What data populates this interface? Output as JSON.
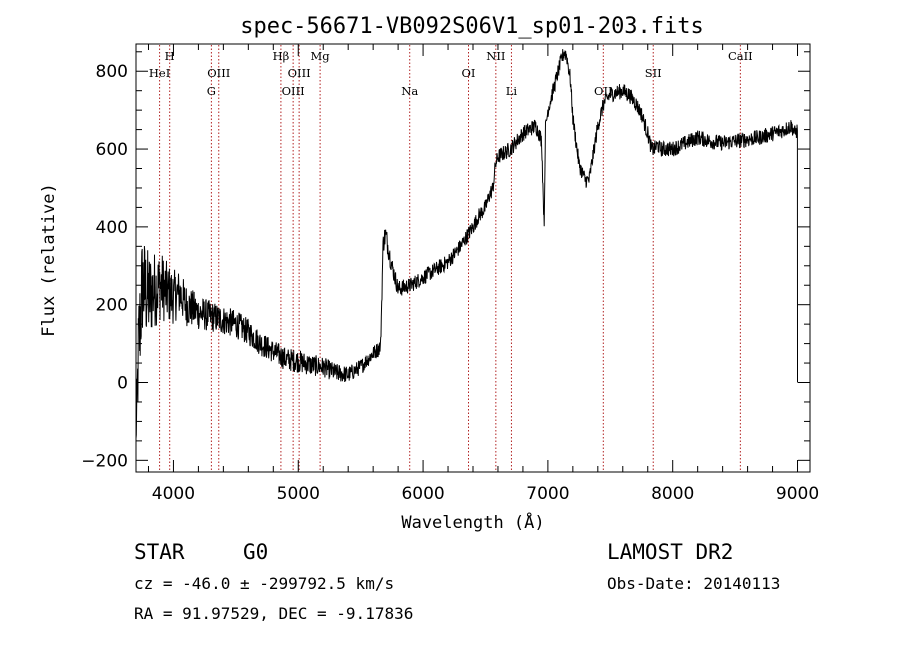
{
  "chart_data": {
    "type": "line",
    "title": "spec-56671-VB092S06V1_sp01-203.fits",
    "xlabel": "Wavelength (Å)",
    "ylabel": "Flux (relative)",
    "xlim": [
      3700,
      9100
    ],
    "ylim": [
      -230,
      870
    ],
    "xticks": [
      4000,
      5000,
      6000,
      7000,
      8000,
      9000
    ],
    "yticks": [
      -200,
      0,
      200,
      400,
      600,
      800
    ],
    "grid": false,
    "line_color": "#000000",
    "marker_color": "#b22222",
    "spectrum_anchor": {
      "x": [
        3700,
        3720,
        3750,
        3800,
        3850,
        3900,
        3950,
        4000,
        4050,
        4100,
        4150,
        4200,
        4300,
        4400,
        4500,
        4600,
        4700,
        4800,
        4900,
        5000,
        5100,
        5200,
        5300,
        5400,
        5500,
        5600,
        5640,
        5660,
        5680,
        5700,
        5750,
        5800,
        5900,
        6000,
        6100,
        6200,
        6300,
        6400,
        6450,
        6500,
        6530,
        6560,
        6580,
        6600,
        6650,
        6700,
        6750,
        6800,
        6850,
        6900,
        6930,
        6950,
        6970,
        6980,
        7000,
        7050,
        7100,
        7130,
        7150,
        7180,
        7200,
        7250,
        7300,
        7330,
        7350,
        7400,
        7450,
        7500,
        7550,
        7600,
        7650,
        7700,
        7750,
        7800,
        7830,
        7850,
        7880,
        7900,
        8000,
        8100,
        8200,
        8300,
        8400,
        8500,
        8600,
        8700,
        8800,
        8900,
        8950,
        8980,
        9000
      ],
      "y": [
        -150,
        80,
        250,
        220,
        240,
        250,
        230,
        220,
        230,
        200,
        190,
        180,
        170,
        160,
        150,
        130,
        100,
        80,
        60,
        55,
        45,
        40,
        25,
        20,
        40,
        75,
        85,
        95,
        360,
        380,
        300,
        240,
        250,
        270,
        290,
        310,
        350,
        400,
        430,
        450,
        480,
        500,
        560,
        580,
        590,
        600,
        620,
        640,
        650,
        660,
        640,
        620,
        400,
        650,
        700,
        760,
        820,
        850,
        840,
        780,
        680,
        560,
        520,
        520,
        560,
        660,
        720,
        740,
        745,
        750,
        740,
        720,
        690,
        640,
        600,
        600,
        610,
        600,
        600,
        615,
        630,
        620,
        615,
        620,
        625,
        630,
        640,
        650,
        660,
        640,
        650
      ],
      "noise": [
        20,
        150,
        140,
        120,
        100,
        90,
        80,
        70,
        60,
        55,
        50,
        45,
        40,
        38,
        36,
        34,
        32,
        30,
        30,
        30,
        28,
        26,
        24,
        22,
        20,
        20,
        20,
        20,
        30,
        30,
        24,
        22,
        20,
        20,
        20,
        20,
        20,
        20,
        20,
        20,
        20,
        20,
        20,
        20,
        20,
        20,
        20,
        20,
        20,
        20,
        20,
        20,
        20,
        20,
        20,
        20,
        20,
        20,
        20,
        20,
        20,
        20,
        20,
        20,
        20,
        20,
        20,
        20,
        20,
        20,
        20,
        20,
        20,
        20,
        20,
        20,
        20,
        20,
        20,
        20,
        20,
        20,
        20,
        20,
        20,
        20,
        20,
        20,
        20,
        20,
        20
      ]
    },
    "spectral_lines": [
      {
        "wavelength": 3889,
        "label": "HeI",
        "label_row": 1
      },
      {
        "wavelength": 3970,
        "label": "H",
        "label_row": 0
      },
      {
        "wavelength": 4304,
        "label": "G",
        "label_row": 2
      },
      {
        "wavelength": 4363,
        "label": "OIII",
        "label_row": 1
      },
      {
        "wavelength": 4861,
        "label": "Hβ",
        "label_row": 0
      },
      {
        "wavelength": 4959,
        "label": "OIII",
        "label_row": 2
      },
      {
        "wavelength": 5007,
        "label": "OIII",
        "label_row": 1
      },
      {
        "wavelength": 5175,
        "label": "Mg",
        "label_row": 0
      },
      {
        "wavelength": 5893,
        "label": "Na",
        "label_row": 2
      },
      {
        "wavelength": 6364,
        "label": "OI",
        "label_row": 1
      },
      {
        "wavelength": 6583,
        "label": "NII",
        "label_row": 0
      },
      {
        "wavelength": 6708,
        "label": "Li",
        "label_row": 2
      },
      {
        "wavelength": 7444,
        "label": "OII",
        "label_row": 2
      },
      {
        "wavelength": 7844,
        "label": "SII",
        "label_row": 1
      },
      {
        "wavelength": 8542,
        "label": "CaII",
        "label_row": 0
      }
    ]
  },
  "info": {
    "class_label": "STAR",
    "subclass_label": "G0",
    "survey_label": "LAMOST DR2",
    "cz_text": "cz = -46.0 ± -299792.5 km/s",
    "obs_date_text": "Obs-Date: 20140113",
    "radec_text": "RA =  91.97529, DEC =  -9.17836"
  }
}
